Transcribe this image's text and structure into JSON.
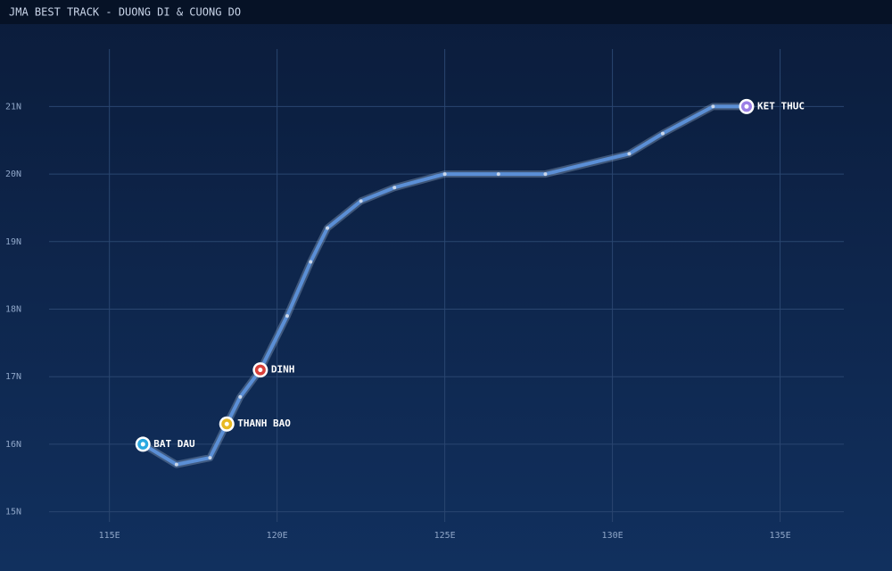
{
  "chart_data": {
    "type": "line",
    "title": "JMA BEST TRACK - DUONG DI & CUONG DO",
    "x": [
      116.0,
      117.0,
      118.0,
      118.5,
      118.9,
      119.5,
      120.3,
      121.0,
      121.5,
      122.5,
      123.5,
      125.0,
      126.6,
      128.0,
      130.5,
      131.5,
      133.0,
      134.0
    ],
    "series": [
      {
        "color": "#5b8fd6",
        "values": [
          16.0,
          15.7,
          15.8,
          16.3,
          16.7,
          17.1,
          17.9,
          18.7,
          19.2,
          19.6,
          19.8,
          20.0,
          20.0,
          20.0,
          20.3,
          20.6,
          21.0,
          21.0
        ]
      }
    ],
    "annotations": [
      {
        "label": "BAT DAU",
        "index": 0,
        "color": "#29a8e0"
      },
      {
        "label": "THANH BAO",
        "index": 3,
        "color": "#e8b923"
      },
      {
        "label": "DINH",
        "index": 5,
        "color": "#d9403a"
      },
      {
        "label": "KET THUC",
        "index": 17,
        "color": "#9b7fe6"
      }
    ],
    "xlim": [
      113.2,
      136.9
    ],
    "ylim": [
      14.85,
      21.85
    ],
    "xticks": [
      {
        "value": 115,
        "label": "115E"
      },
      {
        "value": 120,
        "label": "120E"
      },
      {
        "value": 125,
        "label": "125E"
      },
      {
        "value": 130,
        "label": "130E"
      },
      {
        "value": 135,
        "label": "135E"
      }
    ],
    "yticks": [
      {
        "value": 15,
        "label": "15N"
      },
      {
        "value": 16,
        "label": "16N"
      },
      {
        "value": 17,
        "label": "17N"
      },
      {
        "value": 18,
        "label": "18N"
      },
      {
        "value": 19,
        "label": "19N"
      },
      {
        "value": 20,
        "label": "20N"
      },
      {
        "value": 21,
        "label": "21N"
      }
    ],
    "grid": true
  }
}
